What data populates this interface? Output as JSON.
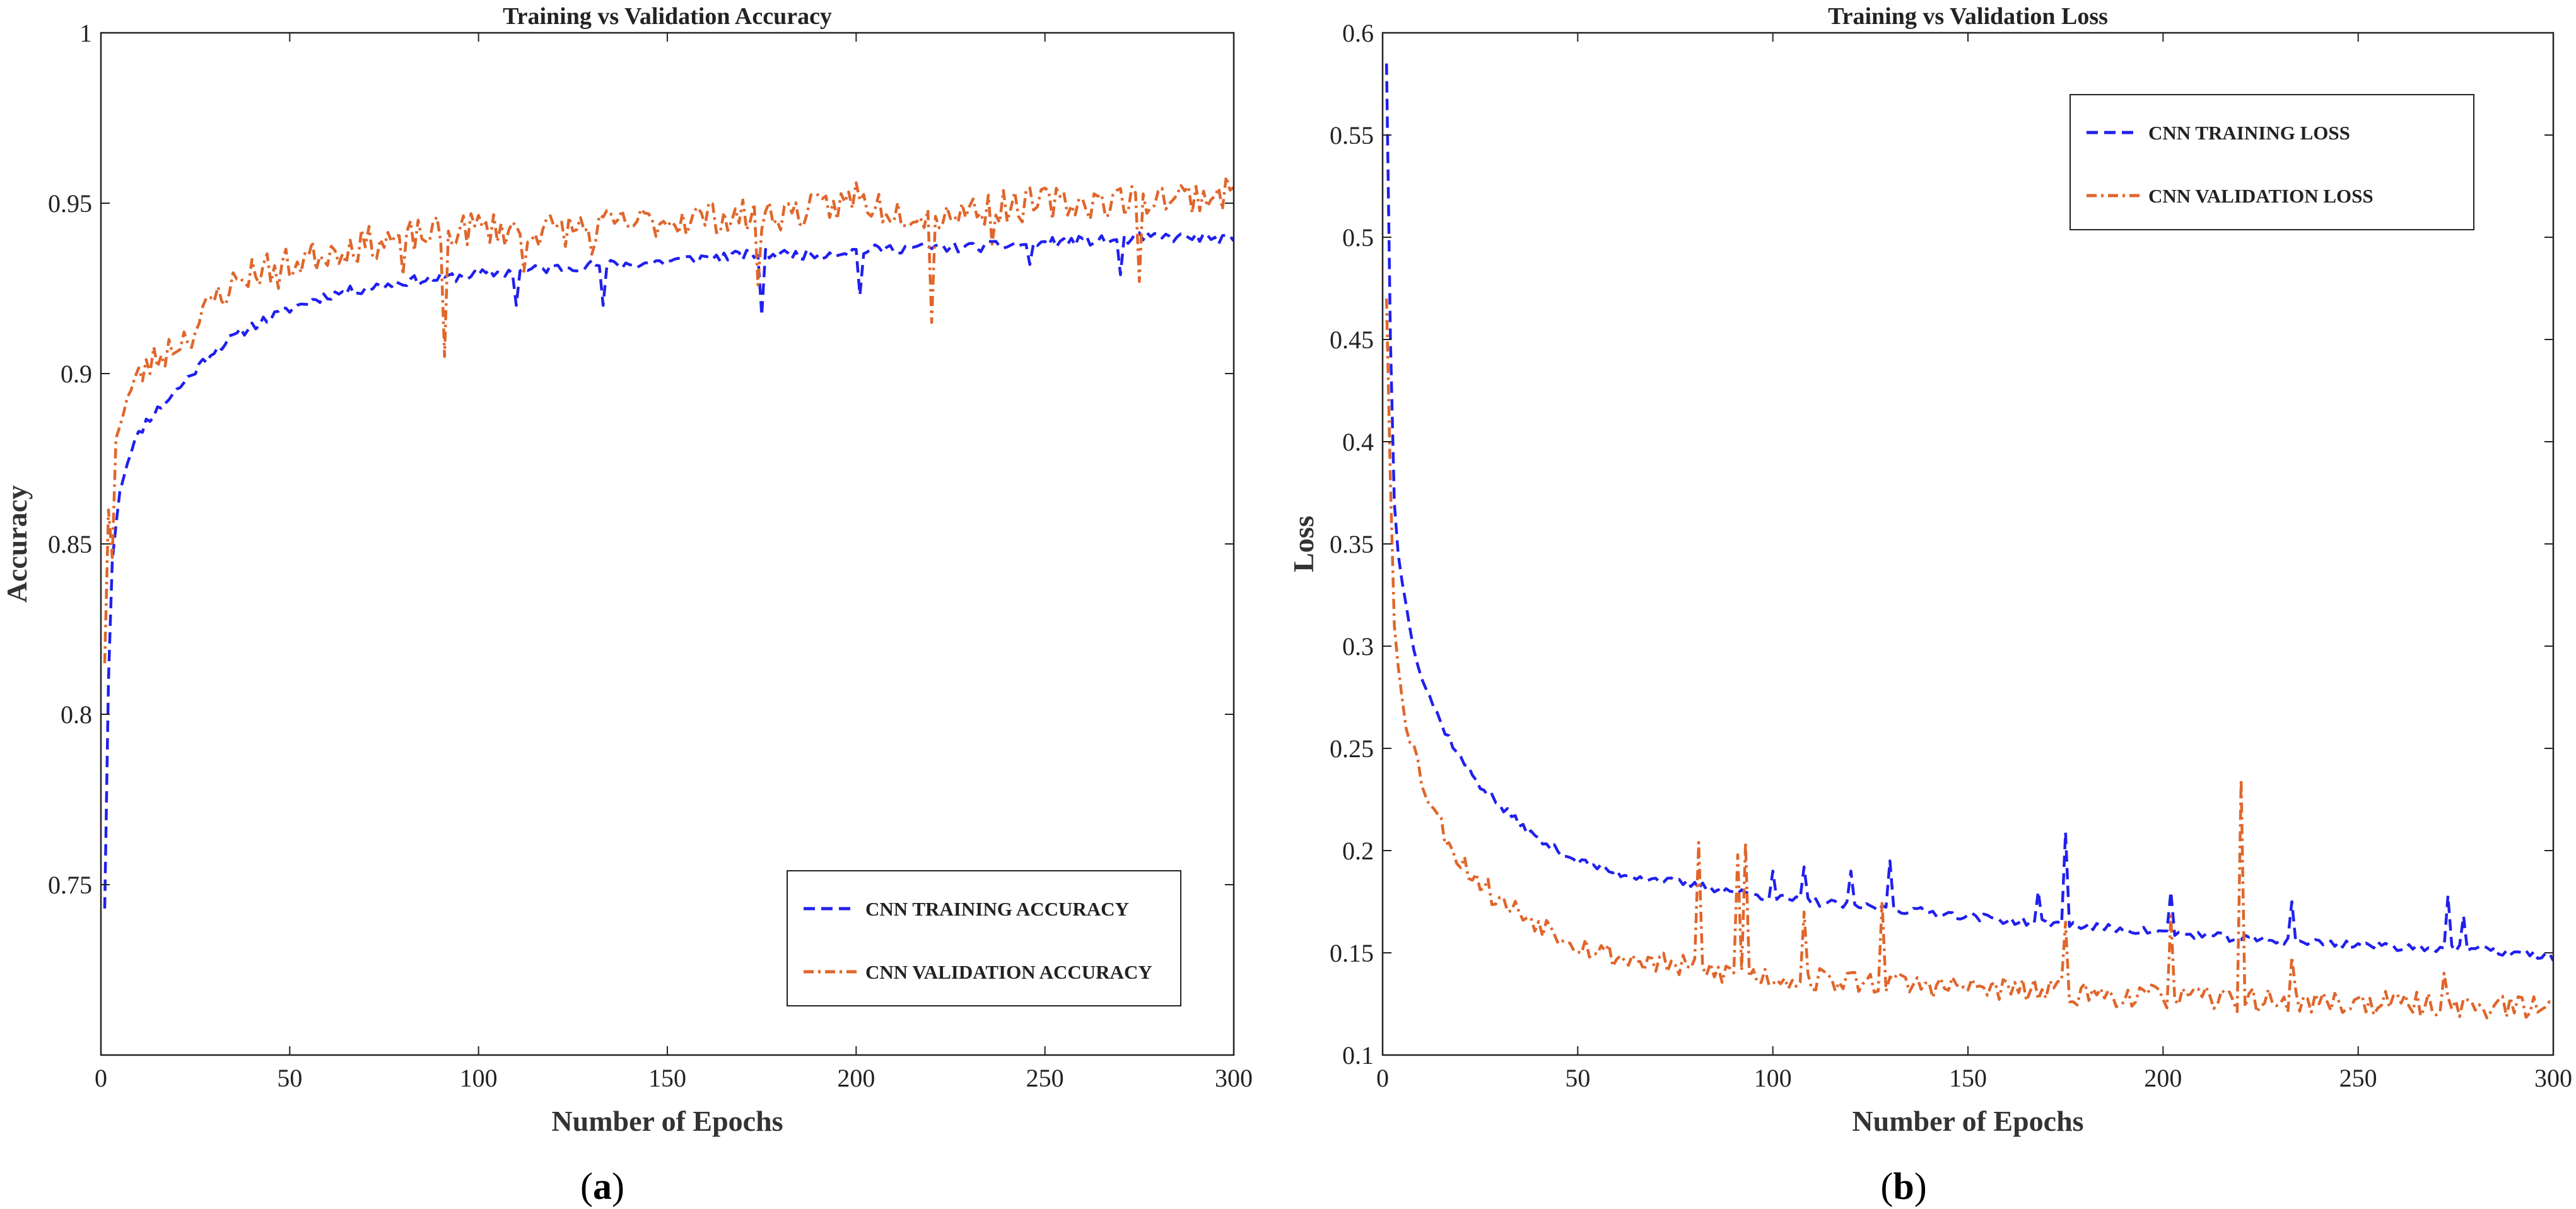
{
  "figure": {
    "panels": [
      "a",
      "b"
    ]
  },
  "chart_data": [
    {
      "id": "a",
      "type": "line",
      "title": "Training vs Validation Accuracy",
      "xlabel": "Number of Epochs",
      "ylabel": "Accuracy",
      "caption": "a",
      "xlim": [
        0,
        300
      ],
      "ylim": [
        0.7,
        1.0
      ],
      "xticks": [
        0,
        50,
        100,
        150,
        200,
        250,
        300
      ],
      "yticks": [
        0.75,
        0.8,
        0.85,
        0.9,
        0.95,
        1
      ],
      "ytick_labels": [
        "0.75",
        "0.8",
        "0.85",
        "0.9",
        "0.95",
        "1"
      ],
      "legend_position": "bottom-right",
      "series": [
        {
          "name": "CNN TRAINING ACCURACY",
          "color": "#2020ee",
          "style": "dashed",
          "key_x": [
            1,
            2,
            3,
            5,
            8,
            12,
            20,
            30,
            40,
            50,
            60,
            70,
            80,
            90,
            100,
            110,
            120,
            130,
            140,
            150,
            160,
            175,
            190,
            200,
            215,
            230,
            245,
            260,
            270,
            275,
            280,
            290,
            300
          ],
          "key_y": [
            0.743,
            0.81,
            0.845,
            0.866,
            0.878,
            0.886,
            0.895,
            0.907,
            0.914,
            0.919,
            0.923,
            0.925,
            0.927,
            0.928,
            0.929,
            0.93,
            0.931,
            0.932,
            0.932,
            0.933,
            0.934,
            0.935,
            0.935,
            0.936,
            0.937,
            0.937,
            0.938,
            0.939,
            0.939,
            0.94,
            0.94,
            0.94,
            0.939
          ],
          "noise": 0.0015,
          "spikes": [
            {
              "x": 110,
              "y": 0.92
            },
            {
              "x": 133,
              "y": 0.92
            },
            {
              "x": 175,
              "y": 0.917
            },
            {
              "x": 201,
              "y": 0.923
            },
            {
              "x": 246,
              "y": 0.932
            },
            {
              "x": 270,
              "y": 0.929
            }
          ],
          "seed": 11
        },
        {
          "name": "CNN VALIDATION ACCURACY",
          "color": "#e0662b",
          "style": "dashdot",
          "key_x": [
            1,
            2,
            3,
            5,
            8,
            12,
            20,
            25,
            30,
            40,
            50,
            60,
            70,
            80,
            90,
            100,
            110,
            120,
            130,
            140,
            150,
            160,
            170,
            180,
            190,
            200,
            210,
            220,
            230,
            240,
            250,
            260,
            270,
            280,
            290,
            300
          ],
          "key_y": [
            0.815,
            0.86,
            0.875,
            0.887,
            0.895,
            0.902,
            0.909,
            0.913,
            0.922,
            0.93,
            0.932,
            0.936,
            0.938,
            0.94,
            0.941,
            0.943,
            0.942,
            0.942,
            0.943,
            0.944,
            0.945,
            0.946,
            0.946,
            0.947,
            0.948,
            0.951,
            0.948,
            0.947,
            0.948,
            0.949,
            0.95,
            0.95,
            0.951,
            0.952,
            0.952,
            0.953
          ],
          "noise": 0.005,
          "spikes": [
            {
              "x": 3,
              "y": 0.846
            },
            {
              "x": 47,
              "y": 0.925
            },
            {
              "x": 80,
              "y": 0.929
            },
            {
              "x": 91,
              "y": 0.905
            },
            {
              "x": 112,
              "y": 0.93
            },
            {
              "x": 130,
              "y": 0.935
            },
            {
              "x": 174,
              "y": 0.926
            },
            {
              "x": 200,
              "y": 0.956
            },
            {
              "x": 220,
              "y": 0.915
            },
            {
              "x": 236,
              "y": 0.938
            },
            {
              "x": 275,
              "y": 0.927
            }
          ],
          "seed": 23
        }
      ]
    },
    {
      "id": "b",
      "type": "line",
      "title": "Training vs Validation Loss",
      "xlabel": "Number of Epochs",
      "ylabel": "Loss",
      "caption": "b",
      "xlim": [
        0,
        300
      ],
      "ylim": [
        0.1,
        0.6
      ],
      "xticks": [
        0,
        50,
        100,
        150,
        200,
        250,
        300
      ],
      "yticks": [
        0.1,
        0.15,
        0.2,
        0.25,
        0.3,
        0.35,
        0.4,
        0.45,
        0.5,
        0.55,
        0.6
      ],
      "ytick_labels": [
        "0.1",
        "0.15",
        "0.2",
        "0.25",
        "0.3",
        "0.35",
        "0.4",
        "0.45",
        "0.5",
        "0.55",
        "0.6"
      ],
      "legend_position": "top-right",
      "series": [
        {
          "name": "CNN TRAINING LOSS",
          "color": "#2020ee",
          "style": "dashed",
          "key_x": [
            1,
            2,
            3,
            4,
            6,
            8,
            10,
            15,
            20,
            25,
            30,
            40,
            50,
            60,
            70,
            80,
            90,
            100,
            120,
            140,
            160,
            180,
            200,
            220,
            240,
            260,
            280,
            300
          ],
          "key_y": [
            0.585,
            0.45,
            0.37,
            0.345,
            0.32,
            0.3,
            0.285,
            0.262,
            0.245,
            0.232,
            0.222,
            0.205,
            0.195,
            0.189,
            0.186,
            0.183,
            0.18,
            0.177,
            0.173,
            0.17,
            0.166,
            0.163,
            0.16,
            0.157,
            0.155,
            0.153,
            0.152,
            0.148
          ],
          "noise": 0.002,
          "spikes": [
            {
              "x": 100,
              "y": 0.19
            },
            {
              "x": 108,
              "y": 0.192
            },
            {
              "x": 120,
              "y": 0.19
            },
            {
              "x": 130,
              "y": 0.195
            },
            {
              "x": 168,
              "y": 0.18
            },
            {
              "x": 175,
              "y": 0.209
            },
            {
              "x": 202,
              "y": 0.18
            },
            {
              "x": 233,
              "y": 0.175
            },
            {
              "x": 273,
              "y": 0.178
            },
            {
              "x": 277,
              "y": 0.168
            }
          ],
          "seed": 37
        },
        {
          "name": "CNN VALIDATION LOSS",
          "color": "#e0662b",
          "style": "dashdot",
          "key_x": [
            1,
            2,
            3,
            4,
            6,
            8,
            10,
            15,
            20,
            25,
            30,
            40,
            50,
            60,
            70,
            80,
            90,
            100,
            120,
            140,
            160,
            180,
            200,
            220,
            240,
            260,
            280,
            300
          ],
          "key_y": [
            0.47,
            0.38,
            0.31,
            0.29,
            0.265,
            0.25,
            0.235,
            0.212,
            0.195,
            0.185,
            0.175,
            0.165,
            0.155,
            0.148,
            0.145,
            0.142,
            0.14,
            0.138,
            0.136,
            0.134,
            0.132,
            0.13,
            0.128,
            0.127,
            0.126,
            0.125,
            0.124,
            0.123
          ],
          "noise": 0.006,
          "spikes": [
            {
              "x": 81,
              "y": 0.204
            },
            {
              "x": 91,
              "y": 0.198
            },
            {
              "x": 93,
              "y": 0.204
            },
            {
              "x": 108,
              "y": 0.17
            },
            {
              "x": 128,
              "y": 0.175
            },
            {
              "x": 175,
              "y": 0.165
            },
            {
              "x": 202,
              "y": 0.168
            },
            {
              "x": 220,
              "y": 0.235
            },
            {
              "x": 233,
              "y": 0.148
            },
            {
              "x": 272,
              "y": 0.14
            }
          ],
          "seed": 53
        }
      ]
    }
  ]
}
